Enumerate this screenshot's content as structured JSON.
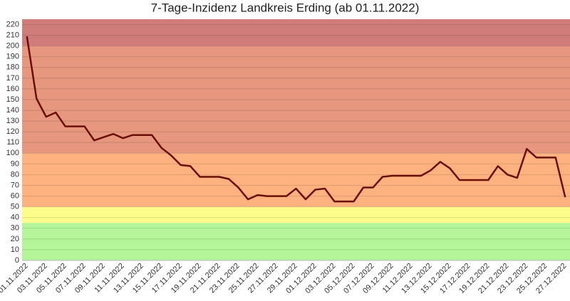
{
  "chart_data": {
    "type": "line",
    "title": "7-Tage-Inzidenz Landkreis Erding (ab 01.11.2022)",
    "categories": [
      "01.11.2022",
      null,
      "03.11.2022",
      null,
      "05.11.2022",
      null,
      "07.11.2022",
      null,
      "09.11.2022",
      null,
      "11.11.2022",
      null,
      "13.11.2022",
      null,
      "15.11.2022",
      null,
      "17.11.2022",
      null,
      "19.11.2022",
      null,
      "21.11.2022",
      null,
      "23.11.2022",
      null,
      "25.11.2022",
      null,
      "27.11.2022",
      null,
      "29.11.2022",
      null,
      "01.12.2022",
      null,
      "03.12.2022",
      null,
      "05.12.2022",
      null,
      "07.12.2022",
      null,
      "09.12.2022",
      null,
      "11.12.2022",
      null,
      "13.12.2022",
      null,
      "15.12.2022",
      null,
      "17.12.2022",
      null,
      "19.12.2022",
      null,
      "21.12.2022",
      null,
      "23.12.2022",
      null,
      "25.12.2022",
      null,
      "27.12.2022"
    ],
    "series": [
      {
        "color": "#6b0f06",
        "values": [
          209,
          151,
          134,
          138,
          125,
          125,
          125,
          112,
          115,
          118,
          114,
          117,
          117,
          117,
          105,
          98,
          89,
          88,
          78,
          78,
          78,
          76,
          68,
          57,
          61,
          60,
          60,
          60,
          67,
          57,
          66,
          67,
          55,
          55,
          55,
          68,
          68,
          78,
          79,
          79,
          79,
          79,
          84,
          92,
          86,
          75,
          75,
          75,
          75,
          88,
          80,
          77,
          104,
          96,
          96,
          96,
          59
        ]
      }
    ],
    "ylim": [
      0,
      225
    ],
    "yticks": [
      0,
      10,
      20,
      30,
      40,
      50,
      60,
      70,
      80,
      90,
      100,
      110,
      120,
      130,
      140,
      150,
      160,
      170,
      180,
      190,
      200,
      210,
      220
    ],
    "grid": true,
    "bands": [
      {
        "from": 0,
        "to": 35,
        "color": "#b3f598"
      },
      {
        "from": 35,
        "to": 50,
        "color": "#fcfc8b"
      },
      {
        "from": 50,
        "to": 100,
        "color": "#fdb27f"
      },
      {
        "from": 100,
        "to": 200,
        "color": "#e6977d"
      },
      {
        "from": 200,
        "to": 225,
        "color": "#cf7c7a"
      }
    ]
  }
}
